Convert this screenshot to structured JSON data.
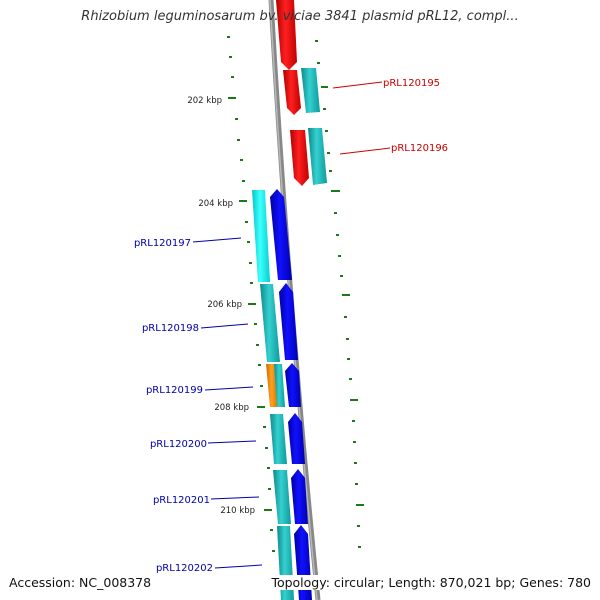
{
  "title": "Rhizobium leguminosarum bv. viciae 3841 plasmid pRL12, compl...",
  "footer": {
    "accession_label": "Accession:",
    "accession": "NC_008378",
    "topology_label": "Topology:",
    "topology": "circular",
    "length_label": "Length:",
    "length": "870,021 bp",
    "genes_label": "Genes:",
    "genes": "780"
  },
  "scale_labels": [
    "202 kbp",
    "204 kbp",
    "206 kbp",
    "208 kbp",
    "210 kbp"
  ],
  "gene_labels": [
    {
      "name": "pRL120195",
      "strand": "reverse",
      "color": "#cc0000"
    },
    {
      "name": "pRL120196",
      "strand": "reverse",
      "color": "#cc0000"
    },
    {
      "name": "pRL120197",
      "strand": "forward",
      "color": "#0000aa"
    },
    {
      "name": "pRL120198",
      "strand": "forward",
      "color": "#0000aa"
    },
    {
      "name": "pRL120199",
      "strand": "forward",
      "color": "#0000aa"
    },
    {
      "name": "pRL120200",
      "strand": "forward",
      "color": "#0000aa"
    },
    {
      "name": "pRL120201",
      "strand": "forward",
      "color": "#0000aa"
    },
    {
      "name": "pRL120202",
      "strand": "forward",
      "color": "#0000aa"
    }
  ],
  "colors": {
    "backbone": "#888888",
    "reverse_cds": "#ee0000",
    "forward_cds": "#0000ee",
    "gene_teal": "#1fb7b7",
    "gene_cyan": "#00f0f0",
    "gene_orange": "#f08c00",
    "tick": "#1a7a1a"
  }
}
